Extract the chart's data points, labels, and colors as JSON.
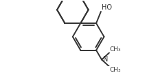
{
  "bg_color": "#ffffff",
  "line_color": "#333333",
  "text_color": "#333333",
  "lw": 1.4,
  "figsize": [
    2.14,
    1.07
  ],
  "dpi": 100,
  "ho_label": "HO",
  "n_label": "N",
  "ch3_labels": [
    "CH₃",
    "CH₃"
  ],
  "font_size": 7
}
